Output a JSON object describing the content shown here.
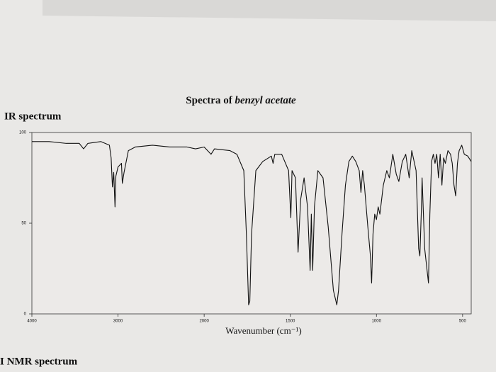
{
  "page": {
    "heading": "IR spectrum",
    "footer_heading": "I NMR spectrum"
  },
  "chart_data": {
    "type": "line",
    "title": [
      "Spectra of",
      "benzyl acetate"
    ],
    "xlabel": "Wavenumber (cm⁻¹)",
    "color": "#111111",
    "xlim": [
      4000,
      450
    ],
    "xticks": [
      4000,
      3000,
      2000,
      1500,
      1000,
      500
    ],
    "ylim": [
      0,
      100
    ],
    "yticks": [
      0,
      50,
      100
    ],
    "x": [
      4000,
      3800,
      3600,
      3450,
      3400,
      3350,
      3200,
      3100,
      3080,
      3065,
      3050,
      3035,
      3025,
      3000,
      2960,
      2950,
      2930,
      2880,
      2800,
      2600,
      2400,
      2200,
      2100,
      2000,
      1960,
      1940,
      1850,
      1810,
      1770,
      1755,
      1742,
      1735,
      1725,
      1700,
      1660,
      1610,
      1600,
      1590,
      1550,
      1510,
      1497,
      1490,
      1470,
      1455,
      1440,
      1420,
      1400,
      1385,
      1378,
      1370,
      1360,
      1340,
      1310,
      1280,
      1250,
      1230,
      1220,
      1200,
      1180,
      1160,
      1140,
      1120,
      1100,
      1090,
      1080,
      1070,
      1050,
      1035,
      1028,
      1020,
      1010,
      1000,
      990,
      980,
      960,
      940,
      925,
      905,
      885,
      870,
      850,
      830,
      810,
      795,
      770,
      755,
      748,
      740,
      735,
      720,
      698,
      690,
      680,
      670,
      660,
      650,
      640,
      630,
      620,
      610,
      600,
      585,
      570,
      560,
      550,
      540,
      530,
      520,
      505,
      490,
      470,
      450
    ],
    "values": [
      95,
      95,
      94,
      94,
      91,
      94,
      95,
      93,
      86,
      70,
      78,
      59,
      76,
      81,
      83,
      72,
      78,
      90,
      92,
      93,
      92,
      92,
      91,
      92,
      88,
      91,
      90,
      88,
      79,
      44,
      5,
      7,
      44,
      79,
      84,
      87,
      83,
      88,
      88,
      79,
      53,
      79,
      75,
      34,
      63,
      75,
      59,
      24,
      55,
      24,
      59,
      79,
      75,
      48,
      13,
      5,
      13,
      44,
      71,
      84,
      87,
      84,
      79,
      67,
      79,
      71,
      48,
      32,
      17,
      44,
      55,
      52,
      59,
      55,
      71,
      79,
      75,
      88,
      77,
      73,
      84,
      88,
      75,
      90,
      79,
      36,
      32,
      55,
      75,
      36,
      17,
      55,
      84,
      88,
      83,
      88,
      75,
      88,
      71,
      86,
      83,
      90,
      88,
      83,
      71,
      65,
      83,
      90,
      93,
      88,
      87,
      84
    ]
  }
}
